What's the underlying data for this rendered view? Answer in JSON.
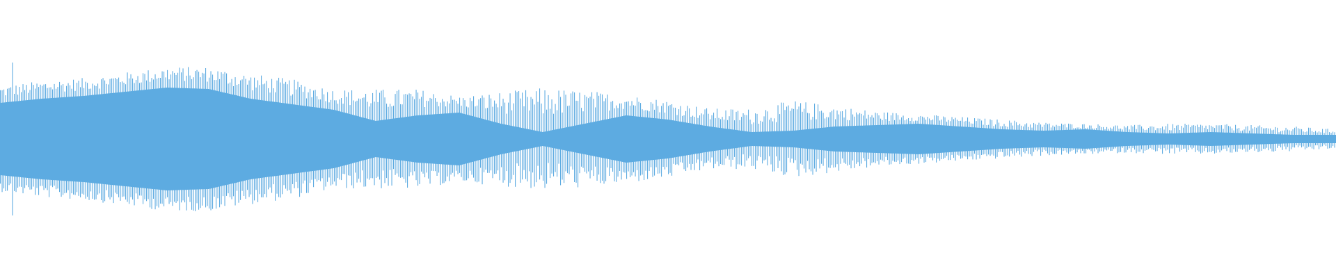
{
  "chart_data": {
    "type": "area",
    "kind": "audio-waveform",
    "axes_visible": false,
    "grid": false,
    "legend": "none",
    "ylim": [
      -1,
      1
    ],
    "color": "#5dabe1",
    "background": "#ffffff",
    "peak_envelope": [
      0.38,
      0.42,
      0.44,
      0.48,
      0.52,
      0.52,
      0.47,
      0.43,
      0.36,
      0.36,
      0.36,
      0.31,
      0.34,
      0.37,
      0.35,
      0.32,
      0.28,
      0.22,
      0.22,
      0.28,
      0.24,
      0.2,
      0.18,
      0.16,
      0.14,
      0.12,
      0.11,
      0.1,
      0.11,
      0.11,
      0.1,
      0.09,
      0.07
    ],
    "rms_envelope": [
      0.25,
      0.28,
      0.3,
      0.33,
      0.36,
      0.35,
      0.28,
      0.24,
      0.2,
      0.12,
      0.16,
      0.18,
      0.1,
      0.04,
      0.1,
      0.16,
      0.13,
      0.08,
      0.04,
      0.05,
      0.08,
      0.09,
      0.1,
      0.08,
      0.06,
      0.05,
      0.06,
      0.04,
      0.03,
      0.04,
      0.03,
      0.02,
      0.02
    ],
    "transient_peak": 0.55
  }
}
